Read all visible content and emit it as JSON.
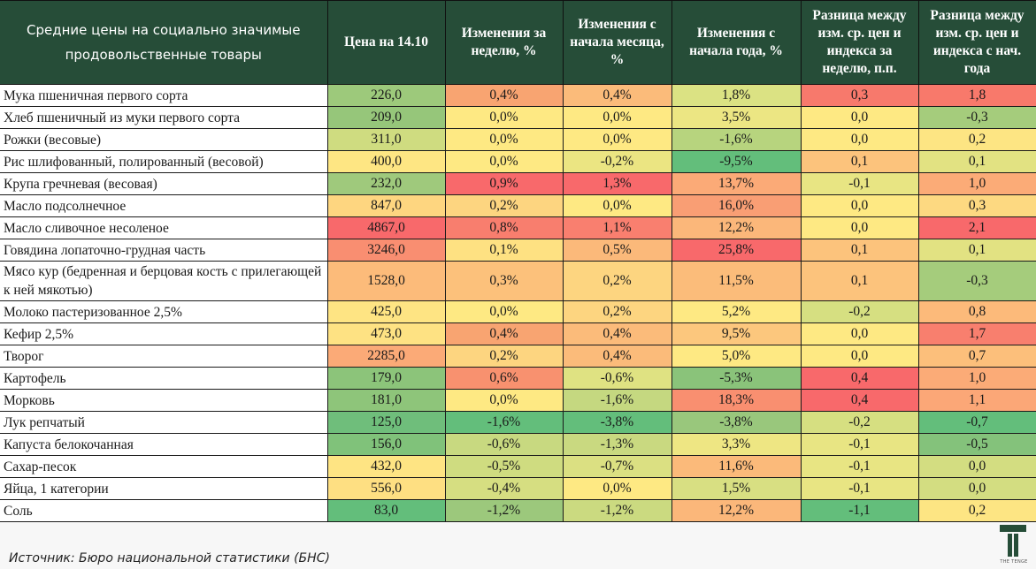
{
  "table": {
    "headers": [
      "Средние цены на социально значимые продовольственные товары",
      "Цена на 14.10",
      "Изменения за неделю, %",
      "Изменения с начала месяца, %",
      "Изменения с начала года, %",
      "Разница между изм. ср. цен и индекса за неделю, п.п.",
      "Разница между изм. ср. цен и индекса с нач. года"
    ],
    "header_bg": "#264d38",
    "rows": [
      {
        "name": "Мука пшеничная первого сорта",
        "cells": [
          {
            "v": "226,0",
            "c": "#9dc97b"
          },
          {
            "v": "0,4%",
            "c": "#f8a471"
          },
          {
            "v": "0,4%",
            "c": "#fbbb7a"
          },
          {
            "v": "1,8%",
            "c": "#dbe283"
          },
          {
            "v": "0,3",
            "c": "#f7796c"
          },
          {
            "v": "1,8",
            "c": "#f8796b"
          }
        ]
      },
      {
        "name": "Хлеб пшеничный из муки первого сорта",
        "cells": [
          {
            "v": "209,0",
            "c": "#96c67a"
          },
          {
            "v": "0,0%",
            "c": "#fee983"
          },
          {
            "v": "0,0%",
            "c": "#fee983"
          },
          {
            "v": "3,5%",
            "c": "#ece683"
          },
          {
            "v": "0,0",
            "c": "#fee983"
          },
          {
            "v": "-0,3",
            "c": "#a5cc7c"
          }
        ]
      },
      {
        "name": "Рожки (весовые)",
        "cells": [
          {
            "v": "311,0",
            "c": "#cfdc80"
          },
          {
            "v": "0,0%",
            "c": "#fee983"
          },
          {
            "v": "0,0%",
            "c": "#fee983"
          },
          {
            "v": "-1,6%",
            "c": "#b7d47e"
          },
          {
            "v": "0,0",
            "c": "#fee983"
          },
          {
            "v": "0,2",
            "c": "#fde583"
          }
        ]
      },
      {
        "name": "Рис шлифованный, полированный (весовой)",
        "cells": [
          {
            "v": "400,0",
            "c": "#fee683"
          },
          {
            "v": "0,0%",
            "c": "#fee983"
          },
          {
            "v": "-0,2%",
            "c": "#ebe582"
          },
          {
            "v": "-9,5%",
            "c": "#63be7b"
          },
          {
            "v": "0,1",
            "c": "#fcc37c"
          },
          {
            "v": "0,1",
            "c": "#e2e282"
          }
        ]
      },
      {
        "name": "Крупа гречневая (весовая)",
        "cells": [
          {
            "v": "232,0",
            "c": "#9fc97c"
          },
          {
            "v": "0,9%",
            "c": "#f8696b"
          },
          {
            "v": "1,3%",
            "c": "#f8696b"
          },
          {
            "v": "13,7%",
            "c": "#fbaa77"
          },
          {
            "v": "-0,1",
            "c": "#e8e583"
          },
          {
            "v": "1,0",
            "c": "#fbab77"
          }
        ]
      },
      {
        "name": "Масло подсолнечное",
        "cells": [
          {
            "v": "847,0",
            "c": "#fed680"
          },
          {
            "v": "0,2%",
            "c": "#fdd580"
          },
          {
            "v": "0,0%",
            "c": "#fee983"
          },
          {
            "v": "16,0%",
            "c": "#f99e74"
          },
          {
            "v": "0,0",
            "c": "#fee983"
          },
          {
            "v": "0,3",
            "c": "#fdd981"
          }
        ]
      },
      {
        "name": "Масло сливочное несоленое",
        "cells": [
          {
            "v": "4867,0",
            "c": "#f8696b"
          },
          {
            "v": "0,8%",
            "c": "#f87e6e"
          },
          {
            "v": "1,1%",
            "c": "#f97f6f"
          },
          {
            "v": "12,2%",
            "c": "#fbb77a"
          },
          {
            "v": "0,0",
            "c": "#fee983"
          },
          {
            "v": "2,1",
            "c": "#f8696b"
          }
        ]
      },
      {
        "name": "Говядина лопаточно-грудная часть",
        "cells": [
          {
            "v": "3246,0",
            "c": "#f98e71"
          },
          {
            "v": "0,1%",
            "c": "#fee182"
          },
          {
            "v": "0,5%",
            "c": "#fbb97a"
          },
          {
            "v": "25,8%",
            "c": "#f8696b"
          },
          {
            "v": "0,1",
            "c": "#fcc37c"
          },
          {
            "v": "0,1",
            "c": "#e2e282"
          }
        ]
      },
      {
        "name": "Мясо кур (бедренная и берцовая кость с прилегающей к ней мякотью)",
        "tall": true,
        "cells": [
          {
            "v": "1528,0",
            "c": "#fcbb7a"
          },
          {
            "v": "0,3%",
            "c": "#fcc17b"
          },
          {
            "v": "0,2%",
            "c": "#fdd580"
          },
          {
            "v": "11,5%",
            "c": "#fbbc7a"
          },
          {
            "v": "0,1",
            "c": "#fcc37c"
          },
          {
            "v": "-0,3",
            "c": "#a5cc7c"
          }
        ]
      },
      {
        "name": "Молоко пастеризованное 2,5%",
        "cells": [
          {
            "v": "425,0",
            "c": "#fee483"
          },
          {
            "v": "0,0%",
            "c": "#fee983"
          },
          {
            "v": "0,2%",
            "c": "#fdd580"
          },
          {
            "v": "5,2%",
            "c": "#fee983"
          },
          {
            "v": "-0,2",
            "c": "#d6df81"
          },
          {
            "v": "0,8",
            "c": "#fcba7a"
          }
        ]
      },
      {
        "name": "Кефир 2,5%",
        "cells": [
          {
            "v": "473,0",
            "c": "#fee283"
          },
          {
            "v": "0,4%",
            "c": "#f8a471"
          },
          {
            "v": "0,4%",
            "c": "#fbbb7a"
          },
          {
            "v": "9,5%",
            "c": "#fcc77d"
          },
          {
            "v": "0,0",
            "c": "#fee983"
          },
          {
            "v": "1,7",
            "c": "#f87f6e"
          }
        ]
      },
      {
        "name": "Творог",
        "cells": [
          {
            "v": "2285,0",
            "c": "#fbaa77"
          },
          {
            "v": "0,2%",
            "c": "#fdd580"
          },
          {
            "v": "0,4%",
            "c": "#fbbb7a"
          },
          {
            "v": "5,0%",
            "c": "#fee983"
          },
          {
            "v": "0,0",
            "c": "#fee983"
          },
          {
            "v": "0,7",
            "c": "#fcbf7b"
          }
        ]
      },
      {
        "name": "Картофель",
        "cells": [
          {
            "v": "179,0",
            "c": "#8cc47a"
          },
          {
            "v": "0,6%",
            "c": "#f8916f"
          },
          {
            "v": "-0,6%",
            "c": "#dfe282"
          },
          {
            "v": "-5,3%",
            "c": "#8ac37a"
          },
          {
            "v": "0,4",
            "c": "#f8696b"
          },
          {
            "v": "1,0",
            "c": "#fbab77"
          }
        ]
      },
      {
        "name": "Морковь",
        "cells": [
          {
            "v": "181,0",
            "c": "#8ec57a"
          },
          {
            "v": "0,0%",
            "c": "#fee983"
          },
          {
            "v": "-1,6%",
            "c": "#c5d880"
          },
          {
            "v": "18,3%",
            "c": "#f98f70"
          },
          {
            "v": "0,4",
            "c": "#f8696b"
          },
          {
            "v": "1,1",
            "c": "#fba777"
          }
        ]
      },
      {
        "name": "Лук репчатый",
        "cells": [
          {
            "v": "125,0",
            "c": "#6fbe7b"
          },
          {
            "v": "-1,6%",
            "c": "#63be7b"
          },
          {
            "v": "-3,8%",
            "c": "#63be7b"
          },
          {
            "v": "-3,8%",
            "c": "#99c77c"
          },
          {
            "v": "-0,2",
            "c": "#d6df81"
          },
          {
            "v": "-0,7",
            "c": "#63be7b"
          }
        ]
      },
      {
        "name": "Капуста белокочанная",
        "cells": [
          {
            "v": "156,0",
            "c": "#80c27a"
          },
          {
            "v": "-0,6%",
            "c": "#c8d980"
          },
          {
            "v": "-1,3%",
            "c": "#c9d980"
          },
          {
            "v": "3,3%",
            "c": "#eee683"
          },
          {
            "v": "-0,1",
            "c": "#e8e583"
          },
          {
            "v": "-0,5",
            "c": "#84c27b"
          }
        ]
      },
      {
        "name": "Сахар-песок",
        "cells": [
          {
            "v": "432,0",
            "c": "#fee483"
          },
          {
            "v": "-0,5%",
            "c": "#cfdc80"
          },
          {
            "v": "-0,7%",
            "c": "#dbe082"
          },
          {
            "v": "11,6%",
            "c": "#fbba7a"
          },
          {
            "v": "-0,1",
            "c": "#e8e583"
          },
          {
            "v": "0,0",
            "c": "#d3dd81"
          }
        ]
      },
      {
        "name": "Яйца, 1 категории",
        "cells": [
          {
            "v": "556,0",
            "c": "#fedf82"
          },
          {
            "v": "-0,4%",
            "c": "#d6de81"
          },
          {
            "v": "0,0%",
            "c": "#fee983"
          },
          {
            "v": "1,5%",
            "c": "#d8df82"
          },
          {
            "v": "-0,1",
            "c": "#e8e583"
          },
          {
            "v": "0,0",
            "c": "#d3dd81"
          }
        ]
      },
      {
        "name": "Соль",
        "cells": [
          {
            "v": "83,0",
            "c": "#63be7b"
          },
          {
            "v": "-1,2%",
            "c": "#9cc87c"
          },
          {
            "v": "-1,2%",
            "c": "#cbda80"
          },
          {
            "v": "12,2%",
            "c": "#fbb77a"
          },
          {
            "v": "-1,1",
            "c": "#63be7b"
          },
          {
            "v": "0,2",
            "c": "#fde583"
          }
        ]
      }
    ]
  },
  "footer": {
    "source": "Источник: Бюро национальной статистики (БНС)",
    "logo_icon": "the-tenge-logo",
    "logo_text": "THE TENGE"
  }
}
